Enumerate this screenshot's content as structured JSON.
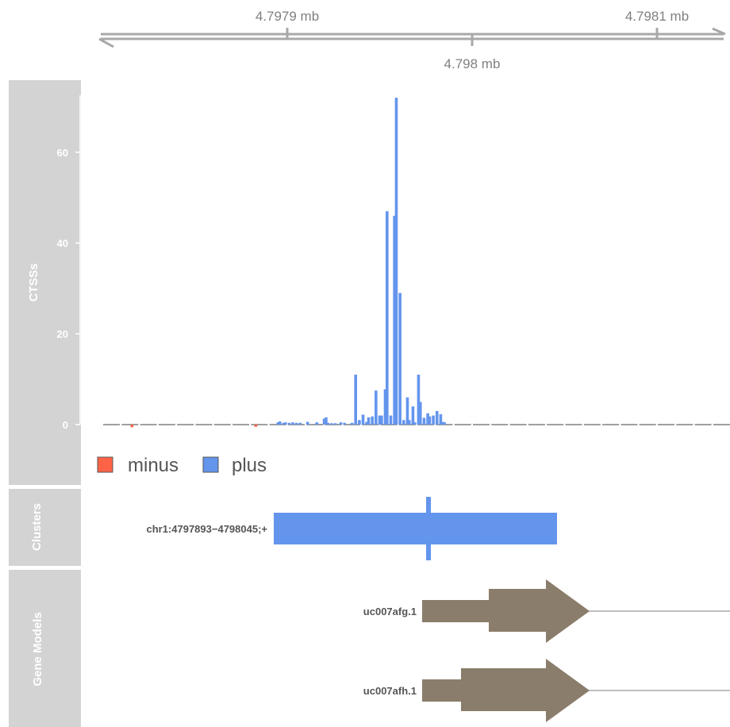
{
  "colors": {
    "panel": "#d3d3d3",
    "axis": "#a8a8a8",
    "plus": "#6495ed",
    "minus": "#ff6347",
    "gene": "#8b7d6b",
    "baseline": "#808080"
  },
  "genome_axis": {
    "ticks": [
      {
        "pos": 4.7979,
        "label": "4.7979 mb",
        "side": "top"
      },
      {
        "pos": 4.798,
        "label": "4.798 mb",
        "side": "bottom"
      },
      {
        "pos": 4.7981,
        "label": "4.7981 mb",
        "side": "top"
      }
    ]
  },
  "tracks": {
    "ctss": {
      "title": "CTSSs"
    },
    "clusters": {
      "title": "Clusters"
    },
    "genes": {
      "title": "Gene Models"
    }
  },
  "legend": [
    {
      "label": "minus",
      "color": "#ff6347"
    },
    {
      "label": "plus",
      "color": "#6495ed"
    }
  ],
  "clusters": [
    {
      "label": "chr1:4797893−4798045;+",
      "start": 4797893,
      "end": 4798045,
      "peak": 4797975
    }
  ],
  "genes": [
    {
      "label": "uc007afg.1"
    },
    {
      "label": "uc007afh.1"
    }
  ],
  "chart_data": {
    "type": "bar",
    "title": "",
    "ylabel": "CTSSs",
    "xlabel": "",
    "ylim": [
      0,
      72
    ],
    "yticks": [
      0,
      20,
      40,
      60
    ],
    "x_unit": "bp (chr1)",
    "xlim": [
      4797800,
      4798135
    ],
    "series": [
      {
        "name": "plus",
        "points": [
          [
            4797895,
            0.5
          ],
          [
            4797896,
            0.7
          ],
          [
            4797898,
            0.4
          ],
          [
            4797899,
            0.5
          ],
          [
            4797901,
            0.4
          ],
          [
            4797903,
            0.5
          ],
          [
            4797905,
            0.4
          ],
          [
            4797907,
            0.4
          ],
          [
            4797911,
            0.6
          ],
          [
            4797916,
            0.5
          ],
          [
            4797920,
            1.3
          ],
          [
            4797921,
            1.6
          ],
          [
            4797922,
            0.4
          ],
          [
            4797924,
            0.3
          ],
          [
            4797926,
            0.3
          ],
          [
            4797929,
            0.5
          ],
          [
            4797931,
            0.4
          ],
          [
            4797935,
            0.4
          ],
          [
            4797937,
            11
          ],
          [
            4797939,
            1
          ],
          [
            4797941,
            2.2
          ],
          [
            4797943,
            0.6
          ],
          [
            4797944,
            1.6
          ],
          [
            4797946,
            1.8
          ],
          [
            4797948,
            7.5
          ],
          [
            4797950,
            2
          ],
          [
            4797951,
            2
          ],
          [
            4797953,
            7.8
          ],
          [
            4797954,
            47
          ],
          [
            4797956,
            2
          ],
          [
            4797958,
            46
          ],
          [
            4797959,
            72
          ],
          [
            4797961,
            29
          ],
          [
            4797963,
            1
          ],
          [
            4797965,
            6
          ],
          [
            4797966,
            1
          ],
          [
            4797968,
            4
          ],
          [
            4797969,
            0.5
          ],
          [
            4797971,
            11
          ],
          [
            4797972,
            5
          ],
          [
            4797974,
            1.5
          ],
          [
            4797976,
            2.5
          ],
          [
            4797977,
            1.8
          ],
          [
            4797979,
            2
          ],
          [
            4797981,
            3
          ],
          [
            4797983,
            2.3
          ],
          [
            4797984,
            0.6
          ],
          [
            4797985,
            0.5
          ]
        ]
      },
      {
        "name": "minus",
        "points": [
          [
            4797816,
            0.4
          ],
          [
            4797883,
            0.3
          ]
        ]
      }
    ]
  }
}
